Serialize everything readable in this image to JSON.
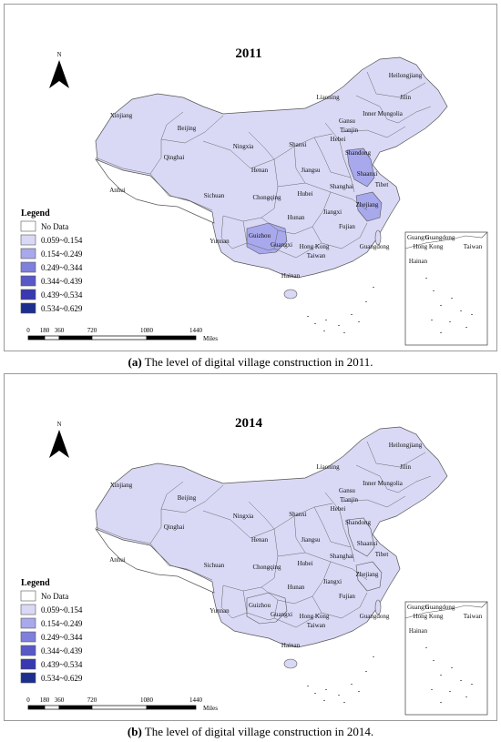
{
  "panels": [
    {
      "id": "a",
      "year": "2011",
      "caption_prefix": "(a)",
      "caption_text": " The level of digital village construction in 2011.",
      "highlight": {
        "Jiangsu": 2,
        "Zhejiang": 2,
        "Guizhou": 2
      }
    },
    {
      "id": "b",
      "year": "2014",
      "caption_prefix": "(b)",
      "caption_text": " The level of digital village construction in 2014.",
      "highlight": {}
    }
  ],
  "north_label": "N",
  "legend": {
    "title": "Legend",
    "items": [
      {
        "label": "No Data",
        "color": "#ffffff"
      },
      {
        "label": "0.059~0.154",
        "color": "#d9d9f6"
      },
      {
        "label": "0.154~0.249",
        "color": "#a8a8ec"
      },
      {
        "label": "0.249~0.344",
        "color": "#7f7fdc"
      },
      {
        "label": "0.344~0.439",
        "color": "#5858c8"
      },
      {
        "label": "0.439~0.534",
        "color": "#3838b0"
      },
      {
        "label": "0.534~0.629",
        "color": "#1c2f8f"
      }
    ]
  },
  "scale_bar": {
    "ticks": [
      "0",
      "180",
      "360",
      "720",
      "1080",
      "1440"
    ],
    "unit": "Miles"
  },
  "province_labels": [
    "Heilongjiang",
    "Jilin",
    "Liaoning",
    "Inner Mongolia",
    "Xinjiang",
    "Gansu",
    "Beijing",
    "Tianjin",
    "Hebei",
    "Ningxia",
    "Shanxi",
    "Shandong",
    "Qinghai",
    "Shaanxi",
    "Henan",
    "Jiangsu",
    "Tibet",
    "Anhui",
    "Shanghai",
    "Sichuan",
    "Chongqing",
    "Hubei",
    "Zhejiang",
    "Jiangxi",
    "Hunan",
    "Guizhou",
    "Fujian",
    "Yunnan",
    "Guangxi",
    "Guangdong",
    "Hong Kong",
    "Taiwan",
    "Hainan"
  ],
  "inset_labels": [
    "Guangxi",
    "Guangdong",
    "Hong Kong",
    "Taiwan",
    "Hainan"
  ]
}
